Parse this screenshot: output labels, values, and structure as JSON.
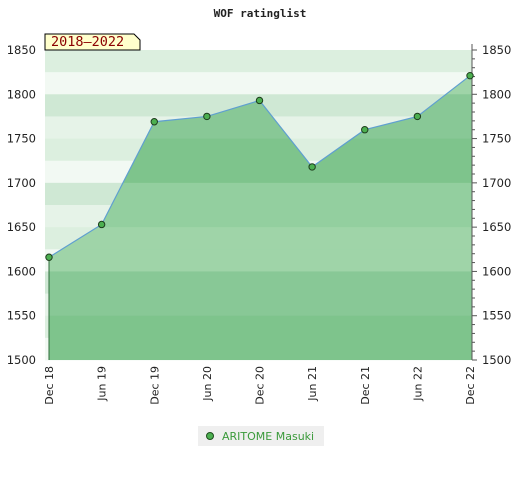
{
  "chart_data": {
    "type": "area",
    "title": "WOF ratinglist",
    "period_label": "2018–2022",
    "categories": [
      "Dec 18",
      "Jun 19",
      "Dec 19",
      "Jun 20",
      "Dec 20",
      "Jun 21",
      "Dec 21",
      "Jun 22",
      "Dec 22"
    ],
    "series": [
      {
        "name": "ARITOME Masuki",
        "values": [
          1616,
          1653,
          1769,
          1775,
          1793,
          1718,
          1760,
          1775,
          1821
        ],
        "line_color": "#5f9fd0",
        "fill_color": "#4caf50",
        "marker_color": "#4caf50"
      }
    ],
    "ylim": [
      1500,
      1850
    ],
    "yticks": [
      1500,
      1550,
      1600,
      1650,
      1700,
      1750,
      1800,
      1850
    ],
    "xlabel": "",
    "ylabel": "",
    "grid": true,
    "legend_position": "bottom-center"
  }
}
